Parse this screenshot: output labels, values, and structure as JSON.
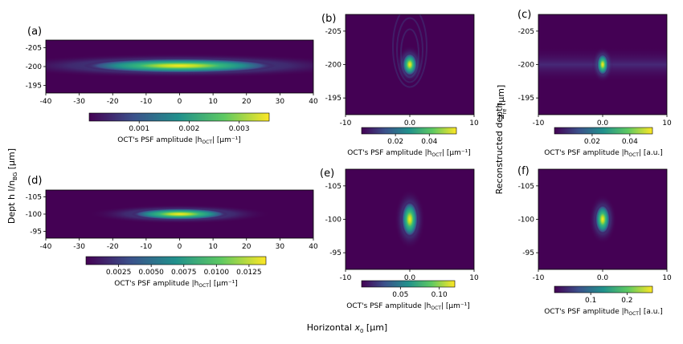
{
  "figure": {
    "ylabel": "Dept h l/n",
    "ylabel_sub": "BG",
    "ylabel_unit": " [µm]",
    "rightlabel": "Reconstructed depth",
    "rightlabel_var": "z",
    "rightlabel_sub": "re",
    "rightlabel_unit": " [µm]",
    "xlabel": "Horizontal",
    "xlabel_var": "x",
    "xlabel_sub": "0",
    "xlabel_unit": " [µm]"
  },
  "colormap": [
    "#440154",
    "#3b528b",
    "#21918c",
    "#5ec962",
    "#fde725"
  ],
  "chart_data": [
    {
      "panel": "(a)",
      "type": "heatmap",
      "xlim": [
        -40,
        40
      ],
      "xticks": [
        "-40",
        "-30",
        "-20",
        "-10",
        "0",
        "10",
        "20",
        "30",
        "40"
      ],
      "ylim": [
        -207,
        -193
      ],
      "yticks": [
        "-205",
        "-200",
        "-195"
      ],
      "peak": {
        "x": 0,
        "y": -200
      },
      "colorbar": {
        "range": [
          0,
          0.0036
        ],
        "ticks": [
          "0.001",
          "0.002",
          "0.003"
        ],
        "label": "OCT's PSF amplitude |h",
        "label_sub": "OCT",
        "label_unit": "| [µm⁻¹]"
      }
    },
    {
      "panel": "(b)",
      "type": "heatmap",
      "xlim": [
        -10,
        10
      ],
      "xticks": [
        "-10",
        "0.0",
        "10"
      ],
      "ylim": [
        -207.5,
        -192.5
      ],
      "yticks": [
        "-205",
        "-200",
        "-195"
      ],
      "peak": {
        "x": 0,
        "y": -200
      },
      "colorbar": {
        "range": [
          0,
          0.056
        ],
        "ticks": [
          "0.02",
          "0.04"
        ],
        "label": "OCT's PSF amplitude |h",
        "label_sub": "OCT",
        "label_unit": "| [µm⁻¹]"
      }
    },
    {
      "panel": "(c)",
      "type": "heatmap",
      "xlim": [
        -10,
        10
      ],
      "xticks": [
        "-10",
        "0.0",
        "10"
      ],
      "ylim": [
        -207.5,
        -192.5
      ],
      "yticks": [
        "-205",
        "-200",
        "-195"
      ],
      "peak": {
        "x": 0,
        "y": -200
      },
      "colorbar": {
        "range": [
          0,
          0.052
        ],
        "ticks": [
          "0.02",
          "0.04"
        ],
        "label": "OCT's PSF amplitude |h",
        "label_sub": "OCT",
        "label_unit": "| [a.u.]"
      }
    },
    {
      "panel": "(d)",
      "type": "heatmap",
      "xlim": [
        -40,
        40
      ],
      "xticks": [
        "-40",
        "-30",
        "-20",
        "-10",
        "0",
        "10",
        "20",
        "30",
        "40"
      ],
      "ylim": [
        -107,
        -93
      ],
      "yticks": [
        "-105",
        "-100",
        "-95"
      ],
      "peak": {
        "x": 0,
        "y": -100
      },
      "colorbar": {
        "range": [
          0,
          0.0138
        ],
        "ticks": [
          "0.0025",
          "0.0050",
          "0.0075",
          "0.0100",
          "0.0125"
        ],
        "label": "OCT's PSF amplitude |h",
        "label_sub": "OCT",
        "label_unit": "| [µm⁻¹]"
      }
    },
    {
      "panel": "(e)",
      "type": "heatmap",
      "xlim": [
        -10,
        10
      ],
      "xticks": [
        "-10",
        "0.0",
        "10"
      ],
      "ylim": [
        -107.5,
        -92.5
      ],
      "yticks": [
        "-105",
        "-100",
        "-95"
      ],
      "peak": {
        "x": 0,
        "y": -100
      },
      "colorbar": {
        "range": [
          0,
          0.12
        ],
        "ticks": [
          "0.05",
          "0.10"
        ],
        "label": "OCT's PSF amplitude |h",
        "label_sub": "OCT",
        "label_unit": "| [µm⁻¹]"
      }
    },
    {
      "panel": "(f)",
      "type": "heatmap",
      "xlim": [
        -10,
        10
      ],
      "xticks": [
        "-10",
        "0.0",
        "10"
      ],
      "ylim": [
        -107.5,
        -92.5
      ],
      "yticks": [
        "-105",
        "-100",
        "-95"
      ],
      "peak": {
        "x": 0,
        "y": -100
      },
      "colorbar": {
        "range": [
          0,
          0.27
        ],
        "ticks": [
          "0.1",
          "0.2"
        ],
        "label": "OCT's PSF amplitude |h",
        "label_sub": "OCT",
        "label_unit": "| [a.u.]"
      }
    }
  ]
}
